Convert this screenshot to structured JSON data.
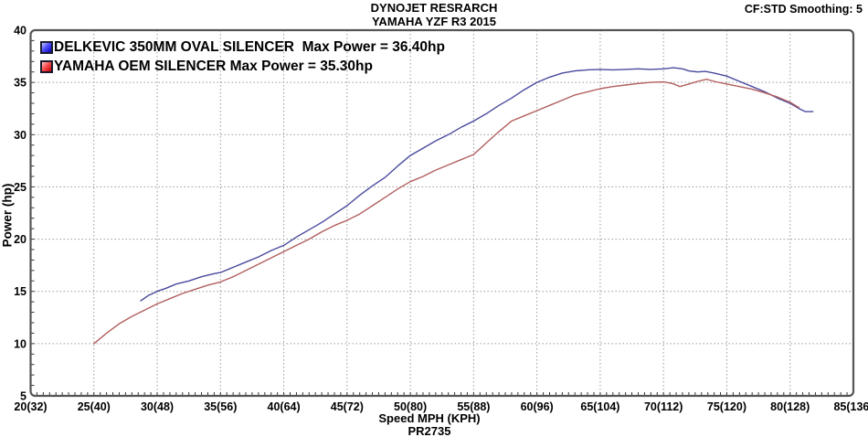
{
  "header": {
    "title_line1": "DYNOJET RESRARCH",
    "title_line2": "YAMAHA YZF R3 2015",
    "right_info": "CF:STD Smoothing: 5"
  },
  "footer": {
    "run_id": "PR2735"
  },
  "colors": {
    "background": "#ffffff",
    "border": "#555555",
    "gridline": "#9a9a9a",
    "tick": "#333333",
    "text": "#000000",
    "series_blue": "#4a4a9e",
    "series_red": "#b25f5f"
  },
  "chart_data": {
    "type": "line",
    "title": "DYNOJET RESRARCH",
    "subtitle": "YAMAHA YZF R3 2015",
    "xlabel": "Speed MPH (KPH)",
    "ylabel": "Power (hp)",
    "xlim": [
      20,
      85
    ],
    "ylim": [
      5,
      40
    ],
    "grid": true,
    "legend_position": "top-left",
    "minor_x_step": 0.5,
    "minor_y_step": 1,
    "x_ticks": [
      {
        "v": 20,
        "label": "20(32)"
      },
      {
        "v": 25,
        "label": "25(40)"
      },
      {
        "v": 30,
        "label": "30(48)"
      },
      {
        "v": 35,
        "label": "35(56)"
      },
      {
        "v": 40,
        "label": "40(64)"
      },
      {
        "v": 45,
        "label": "45(72)"
      },
      {
        "v": 50,
        "label": "50(80)"
      },
      {
        "v": 55,
        "label": "55(88)"
      },
      {
        "v": 60,
        "label": "60(96)"
      },
      {
        "v": 65,
        "label": "65(104)"
      },
      {
        "v": 70,
        "label": "70(112)"
      },
      {
        "v": 75,
        "label": "75(120)"
      },
      {
        "v": 80,
        "label": "80(128)"
      },
      {
        "v": 85,
        "label": "85(136)"
      }
    ],
    "y_ticks": [
      {
        "v": 5,
        "label": "5"
      },
      {
        "v": 10,
        "label": "10"
      },
      {
        "v": 15,
        "label": "15"
      },
      {
        "v": 20,
        "label": "20"
      },
      {
        "v": 25,
        "label": "25"
      },
      {
        "v": 30,
        "label": "30"
      },
      {
        "v": 35,
        "label": "35"
      },
      {
        "v": 40,
        "label": "40"
      }
    ],
    "series": [
      {
        "name": "DELKEVIC 350MM OVAL SILENCER  Max Power = 36.40hp",
        "max_power_hp": 36.4,
        "color": "#4a4a9e",
        "points": [
          [
            28.7,
            14.1
          ],
          [
            29.3,
            14.6
          ],
          [
            30,
            15.0
          ],
          [
            30.7,
            15.3
          ],
          [
            31.5,
            15.7
          ],
          [
            32.5,
            16.0
          ],
          [
            33.5,
            16.4
          ],
          [
            34.5,
            16.7
          ],
          [
            35,
            16.8
          ],
          [
            36,
            17.3
          ],
          [
            37,
            17.8
          ],
          [
            38,
            18.3
          ],
          [
            39,
            18.9
          ],
          [
            40,
            19.4
          ],
          [
            41,
            20.2
          ],
          [
            42,
            20.9
          ],
          [
            43,
            21.6
          ],
          [
            44,
            22.4
          ],
          [
            45,
            23.2
          ],
          [
            46,
            24.2
          ],
          [
            47,
            25.1
          ],
          [
            48,
            25.9
          ],
          [
            49,
            27.0
          ],
          [
            50,
            28.0
          ],
          [
            51,
            28.7
          ],
          [
            52,
            29.4
          ],
          [
            53,
            30.0
          ],
          [
            54,
            30.7
          ],
          [
            55,
            31.3
          ],
          [
            56,
            32.0
          ],
          [
            57,
            32.8
          ],
          [
            58,
            33.5
          ],
          [
            59,
            34.3
          ],
          [
            60,
            35.0
          ],
          [
            61,
            35.5
          ],
          [
            62,
            35.9
          ],
          [
            63,
            36.1
          ],
          [
            64,
            36.2
          ],
          [
            65,
            36.25
          ],
          [
            66,
            36.2
          ],
          [
            67,
            36.25
          ],
          [
            68,
            36.3
          ],
          [
            69,
            36.25
          ],
          [
            70,
            36.3
          ],
          [
            70.8,
            36.4
          ],
          [
            71.5,
            36.3
          ],
          [
            72,
            36.1
          ],
          [
            72.7,
            36.0
          ],
          [
            73.3,
            36.05
          ],
          [
            74,
            35.9
          ],
          [
            75,
            35.6
          ],
          [
            76,
            35.1
          ],
          [
            77,
            34.6
          ],
          [
            78,
            34.1
          ],
          [
            79,
            33.5
          ],
          [
            80,
            33.0
          ],
          [
            80.7,
            32.5
          ],
          [
            81.2,
            32.2
          ],
          [
            81.8,
            32.2
          ]
        ]
      },
      {
        "name": "YAMAHA OEM SILENCER Max Power = 35.30hp",
        "max_power_hp": 35.3,
        "color": "#b25f5f",
        "points": [
          [
            25,
            10.0
          ],
          [
            26,
            11.0
          ],
          [
            27,
            11.9
          ],
          [
            28,
            12.6
          ],
          [
            29,
            13.2
          ],
          [
            30,
            13.8
          ],
          [
            31,
            14.3
          ],
          [
            32,
            14.8
          ],
          [
            33,
            15.2
          ],
          [
            34,
            15.6
          ],
          [
            35,
            15.9
          ],
          [
            36,
            16.4
          ],
          [
            37,
            17.0
          ],
          [
            38,
            17.6
          ],
          [
            39,
            18.2
          ],
          [
            40,
            18.8
          ],
          [
            41,
            19.4
          ],
          [
            42,
            20.0
          ],
          [
            43,
            20.7
          ],
          [
            44,
            21.3
          ],
          [
            45,
            21.8
          ],
          [
            46,
            22.4
          ],
          [
            47,
            23.2
          ],
          [
            48,
            24.0
          ],
          [
            49,
            24.8
          ],
          [
            50,
            25.5
          ],
          [
            51,
            26.0
          ],
          [
            52,
            26.6
          ],
          [
            53,
            27.1
          ],
          [
            54,
            27.6
          ],
          [
            55,
            28.1
          ],
          [
            56,
            29.2
          ],
          [
            57,
            30.3
          ],
          [
            58,
            31.3
          ],
          [
            59,
            31.8
          ],
          [
            60,
            32.3
          ],
          [
            61,
            32.8
          ],
          [
            62,
            33.3
          ],
          [
            63,
            33.8
          ],
          [
            64,
            34.1
          ],
          [
            65,
            34.4
          ],
          [
            66,
            34.6
          ],
          [
            67,
            34.75
          ],
          [
            68,
            34.9
          ],
          [
            69,
            35.0
          ],
          [
            70,
            35.05
          ],
          [
            70.7,
            34.9
          ],
          [
            71.3,
            34.6
          ],
          [
            72,
            34.85
          ],
          [
            72.7,
            35.1
          ],
          [
            73.4,
            35.3
          ],
          [
            74,
            35.1
          ],
          [
            75,
            34.85
          ],
          [
            76,
            34.6
          ],
          [
            77,
            34.35
          ],
          [
            78,
            34.0
          ],
          [
            79,
            33.6
          ],
          [
            80,
            33.1
          ],
          [
            80.7,
            32.6
          ]
        ]
      }
    ]
  }
}
